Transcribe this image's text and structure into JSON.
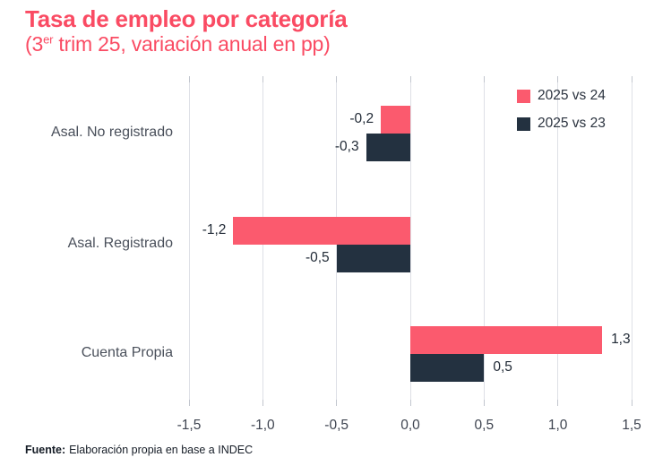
{
  "title": "Tasa de empleo por categoría",
  "subtitle": {
    "prefix": "(3",
    "sup": "er",
    "rest": " trim 25, variación anual en pp)"
  },
  "colors": {
    "title_pink": "#fa4b63",
    "bar_pink": "#fb5a6e",
    "bar_navy": "#233140",
    "grid": "#dee0e6",
    "tick": "#c2c6ce",
    "axis_text": "#3e4450",
    "value_text": "#222b37"
  },
  "legend": [
    {
      "label": "2025 vs 24",
      "color_key": "bar_pink"
    },
    {
      "label": "2025 vs 23",
      "color_key": "bar_navy"
    }
  ],
  "footer": {
    "label": "Fuente:",
    "text": "Elaboración propia en base a INDEC"
  },
  "chart_data": {
    "type": "bar",
    "orientation": "horizontal",
    "title": "Tasa de empleo por categoría (3er trim 25, variación anual en pp)",
    "categories": [
      "Asal. No registrado",
      "Asal. Registrado",
      "Cuenta Propia"
    ],
    "series": [
      {
        "name": "2025 vs 24",
        "values": [
          -0.2,
          -1.2,
          1.3
        ],
        "labels": [
          "-0,2",
          "-1,2",
          "1,3"
        ]
      },
      {
        "name": "2025 vs 23",
        "values": [
          -0.3,
          -0.5,
          0.5
        ],
        "labels": [
          "-0,3",
          "-0,5",
          "0,5"
        ]
      }
    ],
    "xlim": [
      -1.5,
      1.5
    ],
    "xticks": [
      -1.5,
      -1.0,
      -0.5,
      0.0,
      0.5,
      1.0,
      1.5
    ],
    "xtick_labels": [
      "-1,5",
      "-1,0",
      "-0,5",
      "0,0",
      "0,5",
      "1,0",
      "1,5"
    ],
    "grid": true,
    "legend_position": "top-right"
  }
}
